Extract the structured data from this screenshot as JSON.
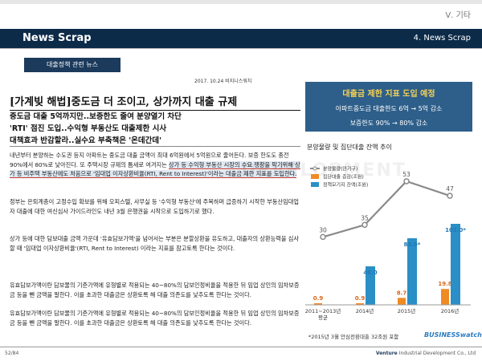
{
  "chapter": "Ⅴ. 기타",
  "header": {
    "title": "News Scrap",
    "section": "4. News Scrap"
  },
  "label": "대출정책 관련 뉴스",
  "article": {
    "date_source": "2017. 10.24 비지니스워치",
    "headline": "[가계빚 해법]중도금 더 조이고, 상가까지 대출 규제",
    "subheads": [
      "중도금 대출 5억까지만..보증한도 줄여 분양열기 차단",
      "'RTI' 점진 도입..수익형 부동산도 대출제한 시사",
      "대책효과 반감할라..실수요 부축책은 '온데간데'"
    ],
    "p1_a": "내년부터 분양하는 수도권 등지 아파트는 중도금 대출 금액이 최대 6억원에서 5억원으로 줄어든다. 보증 한도도 종전 90%에서 80%로 낮아진다. 또 주택시장 규제의 틈새로 여겨지는 ",
    "p1_hl": "상가 등 수익형 부동산 시장의 수요 팽창을 막기위해 상가 등 비주택 부동산에도 처음으로 '임대업 이자상환비율(RTI, Rent to Interest)'이라는 대출금 제한 지표를 도입한다.",
    "p2": "정부는 은퇴계층이 고정수입 확보를 위해 오피스텔, 사무실 등 '수익형 부동산'에 주목하며 급증하기 시작한 부동산임대업자 대출에 대한 여신심사 가이드라인도 내년 3월 은행권을 시작으로 도입하기로 했다.",
    "p3": "상가 등에 대한 담보대출 금액 가운데 '유효담보가액'을 넘어서는 부분은 분할상환을 유도하고, 대출자의 상환능력을 심사할 때 '임대업 이자상환비율'(RTI, Rent to Interest) 이라는 지표를 참고토록 한다는 것이다.",
    "p4": "유효담보가액이란 담보물의 기준가액에 유형별로 적용되는 40~80%의 담보인정비율을 적용한 뒤 임업 상인의 임차보증금 등을 뺀 금액을 말한다. 이를 초과한 대출금은 상환토록 해 대출 의존도를 낮추도록 한다는 것이다.",
    "p5": "유효담보가액이란 담보물의 기준가액에 유형별로 적용되는 40~80%의 담보인정비율을 적용한 뒤 임업 상인의 임차보증금 등을 뺀 금액을 말한다. 이를 초과한 대출금은 상환토록 해 대출 의존도를 낮추도록 한다는 것이다."
  },
  "info_box": {
    "title": "대출금 제한 지표 도입 예정",
    "line1": "아파트중도금 대출한도 6억 → 5억 감소",
    "line2": "보증한도 90% → 80% 감소"
  },
  "chart_data": {
    "type": "bar",
    "title": "분양물량 및 집단대출 잔액 추이",
    "categories": [
      "2011~2013년 평균",
      "2014년",
      "2015년",
      "2016년"
    ],
    "series": [
      {
        "name": "분양물량(만가구)",
        "kind": "line",
        "values": [
          30,
          35,
          53,
          47
        ],
        "labels": [
          "30",
          "35",
          "53",
          "47"
        ]
      },
      {
        "name": "집단대출 증감(조원)",
        "kind": "bar",
        "values": [
          0.9,
          0.9,
          8.7,
          19.8
        ],
        "labels": [
          "0.9",
          "0.9",
          "8.7",
          "19.8"
        ]
      },
      {
        "name": "정책모기지 잔액(조원)",
        "kind": "bar",
        "values": [
          null,
          48.0,
          83.0,
          101.0
        ],
        "labels": [
          "",
          "48.0",
          "83.0*",
          "101.0*"
        ]
      }
    ],
    "footnote": "*2015년 3월 안심전환대출 32조원 포함",
    "colors": {
      "line": "#8a8a8a",
      "bar1": "#f08a24",
      "bar2": "#2a8fc6",
      "label_line": "#555555",
      "label_bar1": "#d9661b",
      "label_bar2": "#1f78b4"
    },
    "brand": "BUSINESSwatch"
  },
  "watermark": "DEVELOPMENT",
  "footer": {
    "page": "52/84",
    "company_bold": "Venture",
    "company_rest": "Industrial Development Co., Ltd"
  }
}
